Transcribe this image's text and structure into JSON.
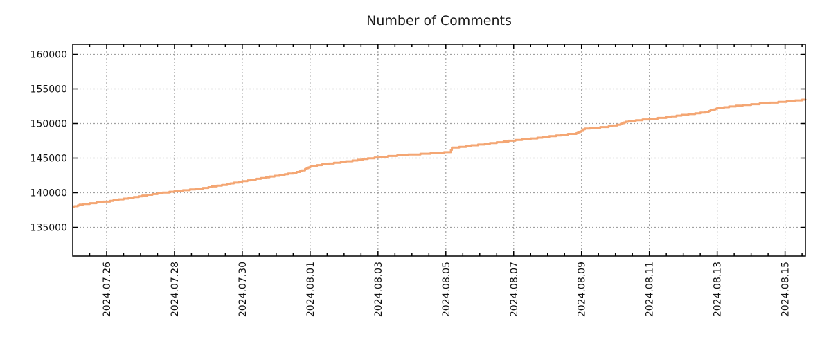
{
  "chart_data": {
    "type": "line",
    "title": "Number of Comments",
    "grid": {
      "visible": true,
      "color": "#a0a0a0",
      "dash": "2 3"
    },
    "border_color": "#000000",
    "legend": "none",
    "x_axis": {
      "lim_days": [
        0,
        21.6
      ],
      "minor_tick_step_days": 0.5,
      "ticks": [
        {
          "day": 1,
          "label": "2024.07.26"
        },
        {
          "day": 3,
          "label": "2024.07.28"
        },
        {
          "day": 5,
          "label": "2024.07.30"
        },
        {
          "day": 7,
          "label": "2024.08.01"
        },
        {
          "day": 9,
          "label": "2024.08.03"
        },
        {
          "day": 11,
          "label": "2024.08.05"
        },
        {
          "day": 13,
          "label": "2024.08.07"
        },
        {
          "day": 15,
          "label": "2024.08.09"
        },
        {
          "day": 17,
          "label": "2024.08.11"
        },
        {
          "day": 19,
          "label": "2024.08.13"
        },
        {
          "day": 21,
          "label": "2024.08.15"
        }
      ]
    },
    "y_axis": {
      "lim": [
        130850,
        161450
      ],
      "ticks": [
        135000,
        140000,
        145000,
        150000,
        155000,
        160000
      ]
    },
    "series": [
      {
        "name": "comments",
        "color": "#f4a673",
        "line_width": 3,
        "points": [
          [
            0,
            137900
          ],
          [
            0.1,
            138100
          ],
          [
            0.25,
            138300
          ],
          [
            0.6,
            138500
          ],
          [
            1,
            138720
          ],
          [
            1.5,
            139120
          ],
          [
            2,
            139500
          ],
          [
            2.5,
            139900
          ],
          [
            3,
            140200
          ],
          [
            3.4,
            140380
          ],
          [
            4,
            140780
          ],
          [
            4.5,
            141180
          ],
          [
            5,
            141650
          ],
          [
            5.5,
            142050
          ],
          [
            6,
            142450
          ],
          [
            6.5,
            142850
          ],
          [
            6.8,
            143250
          ],
          [
            7,
            143800
          ],
          [
            7.5,
            144150
          ],
          [
            8,
            144450
          ],
          [
            8.5,
            144800
          ],
          [
            9,
            145120
          ],
          [
            9.3,
            145280
          ],
          [
            10,
            145520
          ],
          [
            10.5,
            145680
          ],
          [
            11,
            145830
          ],
          [
            11.12,
            145870
          ],
          [
            11.18,
            146480
          ],
          [
            11.5,
            146650
          ],
          [
            12,
            146950
          ],
          [
            12.5,
            147250
          ],
          [
            13,
            147550
          ],
          [
            13.5,
            147800
          ],
          [
            14,
            148100
          ],
          [
            14.5,
            148400
          ],
          [
            14.85,
            148560
          ],
          [
            15.1,
            149280
          ],
          [
            15.4,
            149400
          ],
          [
            15.7,
            149480
          ],
          [
            16.1,
            149850
          ],
          [
            16.3,
            150280
          ],
          [
            16.6,
            150430
          ],
          [
            17,
            150650
          ],
          [
            17.5,
            150880
          ],
          [
            18,
            151230
          ],
          [
            18.5,
            151530
          ],
          [
            18.7,
            151700
          ],
          [
            18.9,
            152050
          ],
          [
            19,
            152200
          ],
          [
            19.5,
            152500
          ],
          [
            20,
            152750
          ],
          [
            20.5,
            152950
          ],
          [
            21,
            153150
          ],
          [
            21.3,
            153300
          ],
          [
            21.5,
            153420
          ],
          [
            21.55,
            153480
          ],
          [
            21.6,
            153560
          ]
        ]
      }
    ]
  }
}
